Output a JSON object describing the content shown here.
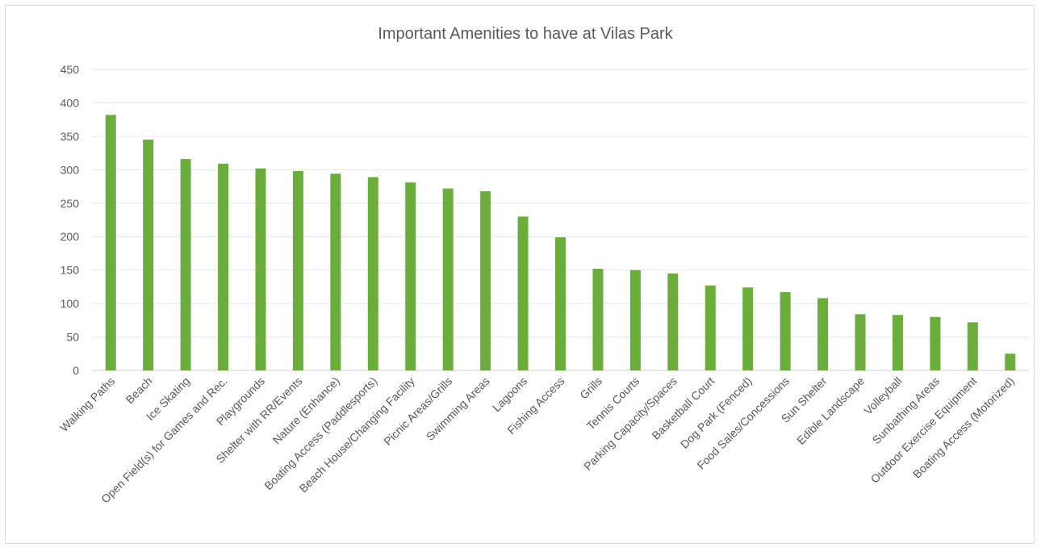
{
  "chart_data": {
    "type": "bar",
    "title": "Important Amenities to have at Vilas Park",
    "xlabel": "",
    "ylabel": "",
    "ylim": [
      0,
      450
    ],
    "yticks": [
      0,
      50,
      100,
      150,
      200,
      250,
      300,
      350,
      400,
      450
    ],
    "grid": true,
    "legend": "none",
    "bar_color": "#6aad3a",
    "categories": [
      "Walking Paths",
      "Beach",
      "Ice Skating",
      "Open Field(s) for Games and Rec.",
      "Playgrounds",
      "Shelter with RR/Events",
      "Nature (Enhance)",
      "Boating Access (Paddlesports)",
      "Beach House/Changing Facility",
      "Picnic Areas/Grills",
      "Swimming Areas",
      "Lagoons",
      "Fishing Access",
      "Grills",
      "Tennis Courts",
      "Parking Capacity/Spaces",
      "Basketball Court",
      "Dog Park (Fenced)",
      "Food Sales/Concessions",
      "Sun Shelter",
      "Edible Landscape",
      "Volleyball",
      "Sunbathing Areas",
      "Outdoor Exercise Equipment",
      "Boating Access (Motorized)"
    ],
    "values": [
      382,
      345,
      316,
      309,
      302,
      298,
      294,
      289,
      281,
      272,
      268,
      230,
      199,
      152,
      150,
      145,
      127,
      124,
      117,
      108,
      84,
      83,
      80,
      72,
      25
    ]
  }
}
